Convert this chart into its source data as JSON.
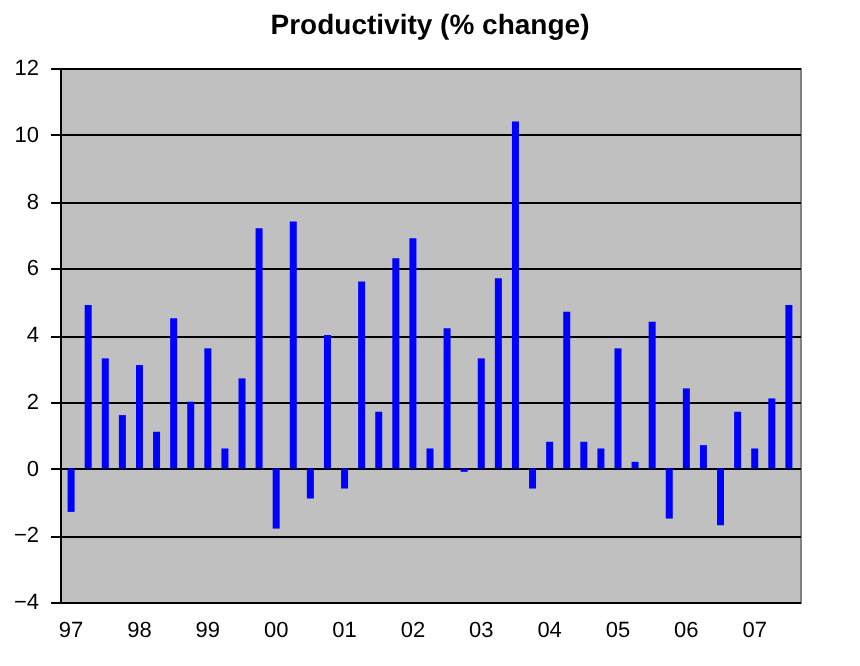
{
  "chart_data": {
    "type": "bar",
    "title": "Productivity (% change)",
    "categories": [
      "97",
      null,
      null,
      null,
      "98",
      null,
      null,
      null,
      "99",
      null,
      null,
      null,
      "00",
      null,
      null,
      null,
      "01",
      null,
      null,
      null,
      "02",
      null,
      null,
      null,
      "03",
      null,
      null,
      null,
      "04",
      null,
      null,
      null,
      "05",
      null,
      null,
      null,
      "06",
      null,
      null,
      null,
      "07",
      null,
      null
    ],
    "values": [
      -1.3,
      4.9,
      3.3,
      1.6,
      3.1,
      1.1,
      4.5,
      2.0,
      3.6,
      0.6,
      2.7,
      7.2,
      -1.8,
      7.4,
      -0.9,
      4.0,
      -0.6,
      5.6,
      1.7,
      6.3,
      6.9,
      0.6,
      4.2,
      -0.1,
      3.3,
      5.7,
      10.4,
      -0.6,
      0.8,
      4.7,
      0.8,
      0.6,
      3.6,
      0.2,
      4.4,
      -1.5,
      2.4,
      0.7,
      -1.7,
      1.7,
      0.6,
      2.1,
      4.9
    ],
    "color": "#0000ff",
    "ylim": [
      -4,
      12
    ],
    "yticks": [
      -4,
      -2,
      0,
      2,
      4,
      6,
      8,
      10,
      12
    ],
    "grid": "y"
  }
}
